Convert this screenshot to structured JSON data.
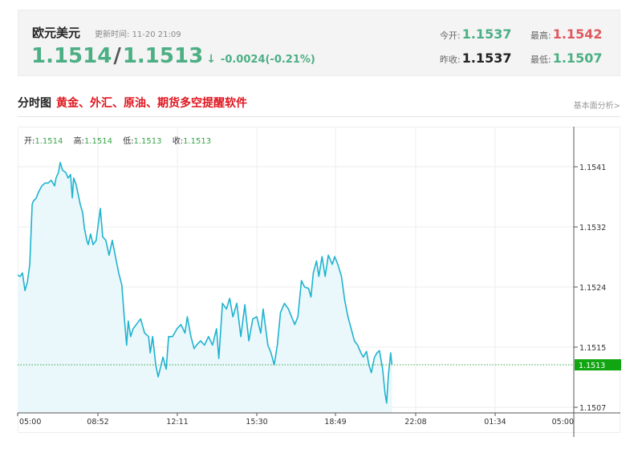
{
  "header": {
    "name": "欧元美元",
    "update_label": "更新时间:",
    "update_time": "11-20 21:09",
    "bid": "1.1514",
    "ask": "1.1513",
    "arrow": "↓",
    "change": "-0.0024(-0.21%)",
    "open_label": "今开:",
    "open": "1.1537",
    "high_label": "最高:",
    "high": "1.1542",
    "prev_label": "昨收:",
    "prev": "1.1537",
    "low_label": "最低:",
    "low": "1.1507"
  },
  "section": {
    "title": "分时图",
    "promo_link": "黄金、外汇、原油、期货多空提醒软件",
    "more_link": "基本面分析>"
  },
  "ohlc": {
    "open_label": "开:",
    "open": "1.1514",
    "high_label": "高:",
    "high": "1.1514",
    "low_label": "低:",
    "low": "1.1513",
    "close_label": "收:",
    "close": "1.1513"
  },
  "colors": {
    "line": "#1fb3cf",
    "fill": "#eaf7fb",
    "up": "#e0585f",
    "down": "#4caf84",
    "last_price_tag": "#11a611"
  },
  "chart_data": {
    "type": "area",
    "x_ticks": [
      "05:00",
      "08:52",
      "12:11",
      "15:30",
      "18:49",
      "22:08",
      "01:34",
      "05:00"
    ],
    "y_ticks": [
      "1.1541",
      "1.1532",
      "1.1524",
      "1.1515",
      "1.1507"
    ],
    "ylim": [
      1.1504,
      1.1545
    ],
    "last_price": "1.1513",
    "grid": true,
    "points": [
      [
        "05:00",
        1.15257
      ],
      [
        "05:07",
        1.15255
      ],
      [
        "05:14",
        1.1526
      ],
      [
        "05:21",
        1.15235
      ],
      [
        "05:28",
        1.15247
      ],
      [
        "05:35",
        1.15272
      ],
      [
        "05:42",
        1.15357
      ],
      [
        "05:46",
        1.15362
      ],
      [
        "05:53",
        1.15365
      ],
      [
        "06:00",
        1.15374
      ],
      [
        "06:10",
        1.15383
      ],
      [
        "06:19",
        1.15387
      ],
      [
        "06:28",
        1.15387
      ],
      [
        "06:37",
        1.15391
      ],
      [
        "06:47",
        1.15383
      ],
      [
        "06:51",
        1.15394
      ],
      [
        "06:58",
        1.15402
      ],
      [
        "07:03",
        1.15416
      ],
      [
        "07:10",
        1.15405
      ],
      [
        "07:19",
        1.15402
      ],
      [
        "07:26",
        1.15394
      ],
      [
        "07:33",
        1.15399
      ],
      [
        "07:38",
        1.15366
      ],
      [
        "07:42",
        1.15394
      ],
      [
        "07:49",
        1.15385
      ],
      [
        "08:01",
        1.15357
      ],
      [
        "08:08",
        1.15345
      ],
      [
        "08:13",
        1.15323
      ],
      [
        "08:20",
        1.15306
      ],
      [
        "08:24",
        1.153
      ],
      [
        "08:31",
        1.15315
      ],
      [
        "08:38",
        1.153
      ],
      [
        "08:47",
        1.15306
      ],
      [
        "08:58",
        1.15351
      ],
      [
        "09:04",
        1.15311
      ],
      [
        "09:12",
        1.15306
      ],
      [
        "09:20",
        1.15285
      ],
      [
        "09:28",
        1.15306
      ],
      [
        "09:36",
        1.15283
      ],
      [
        "09:44",
        1.1526
      ],
      [
        "09:52",
        1.15243
      ],
      [
        "09:58",
        1.15198
      ],
      [
        "10:04",
        1.15158
      ],
      [
        "10:08",
        1.15192
      ],
      [
        "10:14",
        1.1517
      ],
      [
        "10:20",
        1.15181
      ],
      [
        "10:28",
        1.15187
      ],
      [
        "10:39",
        1.15195
      ],
      [
        "10:49",
        1.15175
      ],
      [
        "10:59",
        1.1517
      ],
      [
        "11:03",
        1.15147
      ],
      [
        "11:09",
        1.1517
      ],
      [
        "11:17",
        1.1513
      ],
      [
        "11:23",
        1.15113
      ],
      [
        "11:35",
        1.15141
      ],
      [
        "11:43",
        1.15124
      ],
      [
        "11:49",
        1.1517
      ],
      [
        "11:59",
        1.1517
      ],
      [
        "12:10",
        1.15181
      ],
      [
        "12:20",
        1.15187
      ],
      [
        "12:30",
        1.15175
      ],
      [
        "12:36",
        1.15198
      ],
      [
        "12:45",
        1.1517
      ],
      [
        "12:53",
        1.15153
      ],
      [
        "12:59",
        1.15158
      ],
      [
        "13:09",
        1.15164
      ],
      [
        "13:19",
        1.15158
      ],
      [
        "13:29",
        1.1517
      ],
      [
        "13:39",
        1.15158
      ],
      [
        "13:49",
        1.15181
      ],
      [
        "13:55",
        1.15139
      ],
      [
        "14:04",
        1.15217
      ],
      [
        "14:14",
        1.15209
      ],
      [
        "14:22",
        1.15224
      ],
      [
        "14:30",
        1.15198
      ],
      [
        "14:40",
        1.15217
      ],
      [
        "14:50",
        1.1517
      ],
      [
        "15:00",
        1.15215
      ],
      [
        "15:10",
        1.15164
      ],
      [
        "15:20",
        1.15195
      ],
      [
        "15:30",
        1.15198
      ],
      [
        "15:40",
        1.15175
      ],
      [
        "15:46",
        1.15209
      ],
      [
        "15:58",
        1.15158
      ],
      [
        "16:06",
        1.15147
      ],
      [
        "16:14",
        1.1513
      ],
      [
        "16:22",
        1.15158
      ],
      [
        "16:30",
        1.15204
      ],
      [
        "16:40",
        1.15217
      ],
      [
        "16:50",
        1.15209
      ],
      [
        "16:58",
        1.15198
      ],
      [
        "17:06",
        1.15187
      ],
      [
        "17:14",
        1.15198
      ],
      [
        "17:23",
        1.15249
      ],
      [
        "17:31",
        1.1524
      ],
      [
        "17:41",
        1.15238
      ],
      [
        "17:47",
        1.15226
      ],
      [
        "17:53",
        1.1526
      ],
      [
        "18:01",
        1.15277
      ],
      [
        "18:07",
        1.15255
      ],
      [
        "18:15",
        1.15283
      ],
      [
        "18:23",
        1.15255
      ],
      [
        "18:31",
        1.15285
      ],
      [
        "18:41",
        1.15272
      ],
      [
        "18:47",
        1.15283
      ],
      [
        "18:55",
        1.15272
      ],
      [
        "19:04",
        1.15255
      ],
      [
        "19:12",
        1.15221
      ],
      [
        "19:20",
        1.15198
      ],
      [
        "19:28",
        1.15181
      ],
      [
        "19:36",
        1.15164
      ],
      [
        "19:44",
        1.15158
      ],
      [
        "19:52",
        1.15147
      ],
      [
        "19:58",
        1.15141
      ],
      [
        "20:06",
        1.15149
      ],
      [
        "20:12",
        1.1513
      ],
      [
        "20:18",
        1.15119
      ],
      [
        "20:26",
        1.15141
      ],
      [
        "20:32",
        1.15147
      ],
      [
        "20:38",
        1.1515
      ],
      [
        "20:46",
        1.15124
      ],
      [
        "20:52",
        1.1509
      ],
      [
        "20:56",
        1.15076
      ],
      [
        "21:00",
        1.15113
      ],
      [
        "21:06",
        1.15147
      ],
      [
        "21:09",
        1.1513
      ]
    ]
  }
}
